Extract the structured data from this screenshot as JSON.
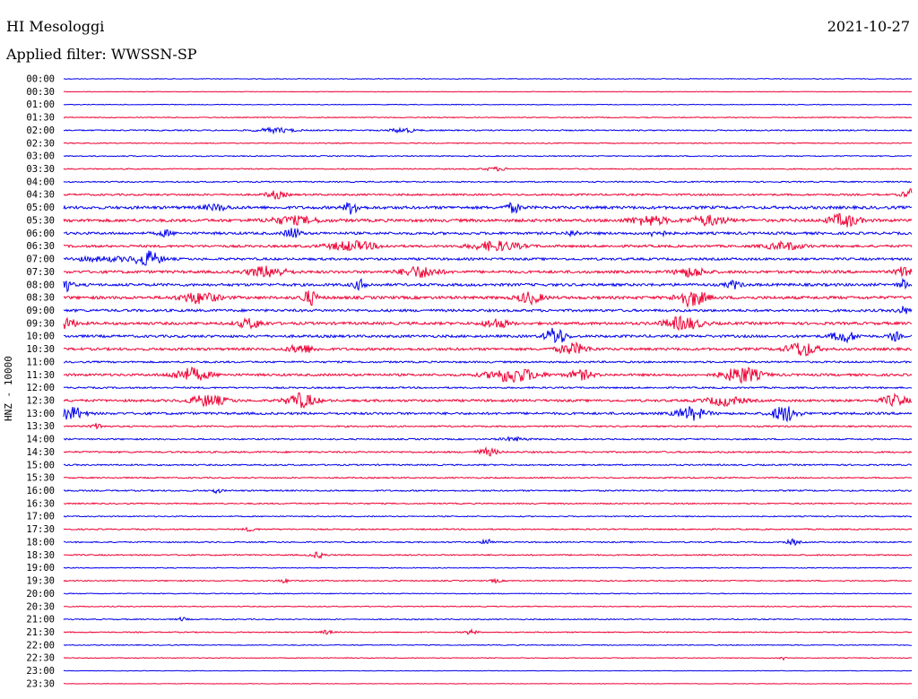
{
  "header": {
    "station": "HI Mesologgi",
    "date": "2021-10-27",
    "filter": "Applied filter: WWSSN-SP"
  },
  "chart_data": {
    "type": "line",
    "ylabel": "HNZ - 10000",
    "rows": [
      "00:00",
      "00:30",
      "01:00",
      "01:30",
      "02:00",
      "02:30",
      "03:00",
      "03:30",
      "04:00",
      "04:30",
      "05:00",
      "05:30",
      "06:00",
      "06:30",
      "07:00",
      "07:30",
      "08:00",
      "08:30",
      "09:00",
      "09:30",
      "10:00",
      "10:30",
      "11:00",
      "11:30",
      "12:00",
      "12:30",
      "13:00",
      "13:30",
      "14:00",
      "14:30",
      "15:00",
      "15:30",
      "16:00",
      "16:30",
      "17:00",
      "17:30",
      "18:00",
      "18:30",
      "19:00",
      "19:30",
      "20:00",
      "20:30",
      "21:00",
      "21:30",
      "22:00",
      "22:30",
      "23:00",
      "23:30"
    ],
    "colors": [
      "#0000ee",
      "#ee0033"
    ],
    "noise": [
      0.4,
      0.3,
      0.4,
      0.5,
      0.7,
      0.5,
      0.6,
      0.6,
      0.7,
      1.0,
      1.6,
      1.6,
      1.4,
      1.3,
      1.3,
      1.5,
      1.5,
      1.6,
      1.4,
      1.5,
      1.4,
      1.4,
      1.0,
      1.3,
      0.9,
      1.3,
      1.3,
      0.8,
      0.8,
      0.9,
      0.8,
      0.7,
      0.8,
      0.7,
      0.6,
      0.7,
      0.7,
      0.7,
      0.5,
      0.6,
      0.5,
      0.5,
      0.6,
      0.6,
      0.5,
      0.4,
      0.3,
      0.3
    ],
    "events": [
      [],
      [],
      [],
      [],
      [
        [
          0.25,
          2.5,
          0.015
        ],
        [
          0.4,
          2.5,
          0.01
        ]
      ],
      [],
      [],
      [
        [
          0.51,
          1.8,
          0.01
        ]
      ],
      [],
      [
        [
          0.25,
          4,
          0.008
        ],
        [
          0.998,
          6,
          0.006
        ]
      ],
      [
        [
          0.34,
          7,
          0.006
        ],
        [
          0.53,
          5,
          0.006
        ],
        [
          0.18,
          3,
          0.01
        ]
      ],
      [
        [
          0.27,
          4,
          0.02
        ],
        [
          0.69,
          5,
          0.015
        ],
        [
          0.76,
          5,
          0.015
        ],
        [
          0.92,
          7,
          0.012
        ]
      ],
      [
        [
          0.27,
          6,
          0.006
        ],
        [
          0.12,
          3,
          0.006
        ],
        [
          0.6,
          3,
          0.005
        ],
        [
          0.7,
          4,
          0.006
        ]
      ],
      [
        [
          0.34,
          5,
          0.02
        ],
        [
          0.51,
          5,
          0.02
        ],
        [
          0.85,
          4,
          0.015
        ]
      ],
      [
        [
          0.1,
          8,
          0.01
        ],
        [
          0.05,
          2,
          0.03
        ]
      ],
      [
        [
          0.24,
          6,
          0.015
        ],
        [
          0.42,
          6,
          0.015
        ],
        [
          0.74,
          5,
          0.012
        ],
        [
          0.995,
          7,
          0.008
        ]
      ],
      [
        [
          0.0,
          8,
          0.006
        ],
        [
          0.35,
          5,
          0.006
        ],
        [
          0.79,
          4,
          0.006
        ],
        [
          0.99,
          5,
          0.004
        ]
      ],
      [
        [
          0.16,
          6,
          0.015
        ],
        [
          0.29,
          8,
          0.006
        ],
        [
          0.55,
          6,
          0.01
        ],
        [
          0.74,
          9,
          0.012
        ]
      ],
      [
        [
          0.99,
          4,
          0.005
        ]
      ],
      [
        [
          0.0,
          6,
          0.01
        ],
        [
          0.22,
          5,
          0.01
        ],
        [
          0.51,
          5,
          0.01
        ],
        [
          0.73,
          7,
          0.015
        ]
      ],
      [
        [
          0.58,
          10,
          0.008
        ],
        [
          0.92,
          6,
          0.01
        ],
        [
          0.98,
          5,
          0.004
        ]
      ],
      [
        [
          0.28,
          5,
          0.01
        ],
        [
          0.6,
          6,
          0.012
        ],
        [
          0.87,
          8,
          0.012
        ]
      ],
      [],
      [
        [
          0.15,
          7,
          0.015
        ],
        [
          0.53,
          8,
          0.02
        ],
        [
          0.61,
          5,
          0.01
        ],
        [
          0.8,
          9,
          0.015
        ]
      ],
      [],
      [
        [
          0.17,
          6,
          0.015
        ],
        [
          0.28,
          8,
          0.012
        ],
        [
          0.78,
          5,
          0.015
        ],
        [
          0.98,
          6,
          0.01
        ]
      ],
      [
        [
          0.01,
          7,
          0.01
        ],
        [
          0.74,
          7,
          0.012
        ],
        [
          0.85,
          9,
          0.01
        ]
      ],
      [
        [
          0.04,
          3,
          0.005
        ]
      ],
      [
        [
          0.53,
          2,
          0.01
        ]
      ],
      [
        [
          0.5,
          4,
          0.008
        ]
      ],
      [],
      [],
      [
        [
          0.18,
          2.5,
          0.004
        ]
      ],
      [],
      [],
      [
        [
          0.22,
          2,
          0.005
        ]
      ],
      [
        [
          0.5,
          4,
          0.004
        ],
        [
          0.86,
          3,
          0.005
        ]
      ],
      [
        [
          0.3,
          3,
          0.006
        ]
      ],
      [],
      [
        [
          0.26,
          2,
          0.004
        ],
        [
          0.51,
          2,
          0.004
        ]
      ],
      [],
      [],
      [
        [
          0.14,
          2,
          0.004
        ]
      ],
      [
        [
          0.48,
          2.5,
          0.005
        ],
        [
          0.31,
          2,
          0.005
        ]
      ],
      [],
      [
        [
          0.85,
          2,
          0.005
        ]
      ],
      [],
      []
    ]
  }
}
